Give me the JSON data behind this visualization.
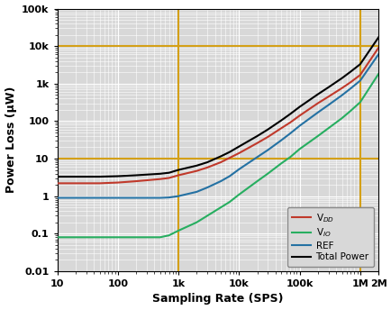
{
  "title": "",
  "xlabel": "Sampling Rate (SPS)",
  "ylabel": "Power Loss (μW)",
  "xlim": [
    10,
    2000000
  ],
  "ylim": [
    0.01,
    100000
  ],
  "vlines": [
    1000,
    1000000
  ],
  "vline_color": "#D4A017",
  "hlines": [
    10,
    10000
  ],
  "hline_color": "#D4A017",
  "legend": [
    "V$_{DD}$",
    "V$_{IO}$",
    "REF",
    "Total Power"
  ],
  "colors": [
    "#C0392B",
    "#27AE60",
    "#2471A3",
    "#000000"
  ],
  "plot_bg": "#D8D8D8",
  "fig_bg": "#FFFFFF",
  "grid_major_color": "#FFFFFF",
  "grid_minor_color": "#FFFFFF",
  "VDD": {
    "x": [
      10,
      20,
      30,
      50,
      70,
      100,
      200,
      300,
      500,
      700,
      1000,
      2000,
      3000,
      5000,
      7000,
      10000,
      20000,
      30000,
      50000,
      70000,
      100000,
      200000,
      300000,
      500000,
      700000,
      1000000,
      2000000
    ],
    "y": [
      2.2,
      2.2,
      2.2,
      2.2,
      2.25,
      2.3,
      2.5,
      2.65,
      2.85,
      3.05,
      3.6,
      4.7,
      5.8,
      8.0,
      10.5,
      14,
      26,
      38,
      65,
      92,
      140,
      300,
      450,
      760,
      1100,
      1700,
      9000
    ]
  },
  "VIO": {
    "x": [
      10,
      20,
      30,
      50,
      70,
      100,
      200,
      300,
      500,
      700,
      1000,
      2000,
      3000,
      5000,
      7000,
      10000,
      20000,
      30000,
      50000,
      70000,
      100000,
      200000,
      300000,
      500000,
      700000,
      1000000,
      2000000
    ],
    "y": [
      0.08,
      0.08,
      0.08,
      0.08,
      0.08,
      0.08,
      0.08,
      0.08,
      0.08,
      0.09,
      0.12,
      0.2,
      0.3,
      0.5,
      0.7,
      1.1,
      2.5,
      4.0,
      7.5,
      11,
      18,
      40,
      65,
      120,
      190,
      320,
      1800
    ]
  },
  "REF": {
    "x": [
      10,
      20,
      30,
      50,
      70,
      100,
      200,
      300,
      500,
      700,
      1000,
      2000,
      3000,
      5000,
      7000,
      10000,
      20000,
      30000,
      50000,
      70000,
      100000,
      200000,
      300000,
      500000,
      700000,
      1000000,
      2000000
    ],
    "y": [
      0.9,
      0.9,
      0.9,
      0.9,
      0.9,
      0.9,
      0.9,
      0.9,
      0.9,
      0.92,
      1.0,
      1.3,
      1.7,
      2.5,
      3.4,
      5.2,
      11,
      17,
      31,
      47,
      75,
      170,
      270,
      490,
      750,
      1200,
      6000
    ]
  },
  "Total": {
    "x": [
      10,
      20,
      30,
      50,
      70,
      100,
      200,
      300,
      500,
      700,
      1000,
      2000,
      3000,
      5000,
      7000,
      10000,
      20000,
      30000,
      50000,
      70000,
      100000,
      200000,
      300000,
      500000,
      700000,
      1000000,
      2000000
    ],
    "y": [
      3.3,
      3.3,
      3.3,
      3.3,
      3.35,
      3.4,
      3.6,
      3.75,
      3.95,
      4.2,
      5.0,
      6.5,
      8.0,
      11.5,
      15,
      21,
      40,
      60,
      105,
      155,
      240,
      520,
      800,
      1400,
      2100,
      3300,
      17000
    ]
  }
}
